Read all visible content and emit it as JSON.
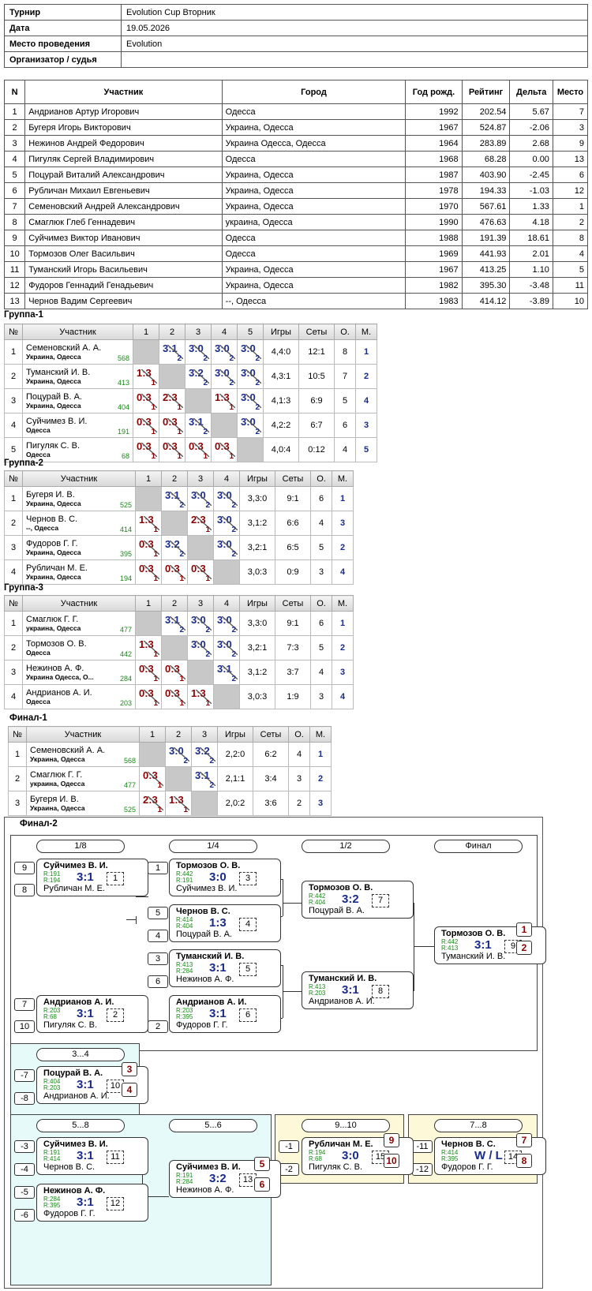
{
  "info": {
    "rows": [
      {
        "k": "Турнир",
        "v": "Evolution Cup Вторник"
      },
      {
        "k": "Дата",
        "v": "19.05.2026"
      },
      {
        "k": "Место проведения",
        "v": "Evolution"
      },
      {
        "k": "Организатор / судья",
        "v": ""
      }
    ]
  },
  "players": {
    "headers": [
      "N",
      "Участник",
      "Город",
      "Год рожд.",
      "Рейтинг",
      "Дельта",
      "Место"
    ],
    "rows": [
      [
        "1",
        "Андрианов Артур Игорович",
        "Одесса",
        "1992",
        "202.54",
        "5.67",
        "7"
      ],
      [
        "2",
        "Бугеря Игорь Викторович",
        "Украина, Одесса",
        "1967",
        "524.87",
        "-2.06",
        "3"
      ],
      [
        "3",
        "Нежинов Андрей Федорович",
        "Украина Одесса, Одесса",
        "1964",
        "283.89",
        "2.68",
        "9"
      ],
      [
        "4",
        "Пигуляк Сергей Владимирович",
        "Одесса",
        "1968",
        "68.28",
        "0.00",
        "13"
      ],
      [
        "5",
        "Поцурай Виталий Александрович",
        "Украина, Одесса",
        "1987",
        "403.90",
        "-2.45",
        "6"
      ],
      [
        "6",
        "Рубличан Михаил Евгеньевич",
        "Украина, Одесса",
        "1978",
        "194.33",
        "-1.03",
        "12"
      ],
      [
        "7",
        "Семеновский Андрей Александрович",
        "Украина, Одесса",
        "1970",
        "567.61",
        "1.33",
        "1"
      ],
      [
        "8",
        "Смаглюк Глеб Геннадевич",
        "украина, Одесса",
        "1990",
        "476.63",
        "4.18",
        "2"
      ],
      [
        "9",
        "Суйчимез Виктор Иванович",
        "Одесса",
        "1988",
        "191.39",
        "18.61",
        "8"
      ],
      [
        "10",
        "Тормозов Олег Васильвич",
        "Одесса",
        "1969",
        "441.93",
        "2.01",
        "4"
      ],
      [
        "11",
        "Туманский Игорь Васильевич",
        "Украина, Одесса",
        "1967",
        "413.25",
        "1.10",
        "5"
      ],
      [
        "12",
        "Фудоров Геннадий Генадьевич",
        "Украина, Одесса",
        "1982",
        "395.30",
        "-3.48",
        "11"
      ],
      [
        "13",
        "Чернов Вадим Сергеевич",
        "--, Одесса",
        "1983",
        "414.12",
        "-3.89",
        "10"
      ]
    ]
  },
  "groups": [
    {
      "title": "Группа-1",
      "cols": [
        "№",
        "Участник",
        "1",
        "2",
        "3",
        "4",
        "5",
        "Игры",
        "Сеты",
        "О.",
        "М."
      ],
      "rows": [
        {
          "n": "1",
          "name": "Семеновский А. А.",
          "city": "Украина, Одесса",
          "rating": "568",
          "cells": [
            null,
            [
              "3:1",
              "2",
              "w"
            ],
            [
              "3:0",
              "2",
              "w"
            ],
            [
              "3:0",
              "2",
              "w"
            ],
            [
              "3:0",
              "2",
              "w"
            ]
          ],
          "games": "4,4:0",
          "sets": "12:1",
          "pts": "8",
          "place": "1"
        },
        {
          "n": "2",
          "name": "Туманский И. В.",
          "city": "Украина, Одесса",
          "rating": "413",
          "cells": [
            [
              "1:3",
              "1",
              "l"
            ],
            null,
            [
              "3:2",
              "2",
              "w"
            ],
            [
              "3:0",
              "2",
              "w"
            ],
            [
              "3:0",
              "2",
              "w"
            ]
          ],
          "games": "4,3:1",
          "sets": "10:5",
          "pts": "7",
          "place": "2"
        },
        {
          "n": "3",
          "name": "Поцурай В. А.",
          "city": "Украина, Одесса",
          "rating": "404",
          "cells": [
            [
              "0:3",
              "1",
              "l"
            ],
            [
              "2:3",
              "1",
              "l"
            ],
            null,
            [
              "1:3",
              "1",
              "l"
            ],
            [
              "3:0",
              "2",
              "w"
            ]
          ],
          "games": "4,1:3",
          "sets": "6:9",
          "pts": "5",
          "place": "4"
        },
        {
          "n": "4",
          "name": "Суйчимез В. И.",
          "city": "Одесса",
          "rating": "191",
          "cells": [
            [
              "0:3",
              "1",
              "l"
            ],
            [
              "0:3",
              "1",
              "l"
            ],
            [
              "3:1",
              "2",
              "w"
            ],
            null,
            [
              "3:0",
              "2",
              "w"
            ]
          ],
          "games": "4,2:2",
          "sets": "6:7",
          "pts": "6",
          "place": "3"
        },
        {
          "n": "5",
          "name": "Пигуляк С. В.",
          "city": "Одесса",
          "rating": "68",
          "cells": [
            [
              "0:3",
              "1",
              "l"
            ],
            [
              "0:3",
              "1",
              "l"
            ],
            [
              "0:3",
              "1",
              "l"
            ],
            [
              "0:3",
              "1",
              "l"
            ],
            null
          ],
          "games": "4,0:4",
          "sets": "0:12",
          "pts": "4",
          "place": "5"
        }
      ]
    },
    {
      "title": "Группа-2",
      "cols": [
        "№",
        "Участник",
        "1",
        "2",
        "3",
        "4",
        "Игры",
        "Сеты",
        "О.",
        "М."
      ],
      "rows": [
        {
          "n": "1",
          "name": "Бугеря И. В.",
          "city": "Украина, Одесса",
          "rating": "525",
          "cells": [
            null,
            [
              "3:1",
              "2",
              "w"
            ],
            [
              "3:0",
              "2",
              "w"
            ],
            [
              "3:0",
              "2",
              "w"
            ]
          ],
          "games": "3,3:0",
          "sets": "9:1",
          "pts": "6",
          "place": "1"
        },
        {
          "n": "2",
          "name": "Чернов В. С.",
          "city": "--, Одесса",
          "rating": "414",
          "cells": [
            [
              "1:3",
              "1",
              "l"
            ],
            null,
            [
              "2:3",
              "1",
              "l"
            ],
            [
              "3:0",
              "2",
              "w"
            ]
          ],
          "games": "3,1:2",
          "sets": "6:6",
          "pts": "4",
          "place": "3"
        },
        {
          "n": "3",
          "name": "Фудоров Г. Г.",
          "city": "Украина, Одесса",
          "rating": "395",
          "cells": [
            [
              "0:3",
              "1",
              "l"
            ],
            [
              "3:2",
              "2",
              "w"
            ],
            null,
            [
              "3:0",
              "2",
              "w"
            ]
          ],
          "games": "3,2:1",
          "sets": "6:5",
          "pts": "5",
          "place": "2"
        },
        {
          "n": "4",
          "name": "Рубличан М. Е.",
          "city": "Украина, Одесса",
          "rating": "194",
          "cells": [
            [
              "0:3",
              "1",
              "l"
            ],
            [
              "0:3",
              "1",
              "l"
            ],
            [
              "0:3",
              "1",
              "l"
            ],
            null
          ],
          "games": "3,0:3",
          "sets": "0:9",
          "pts": "3",
          "place": "4"
        }
      ]
    },
    {
      "title": "Группа-3",
      "cols": [
        "№",
        "Участник",
        "1",
        "2",
        "3",
        "4",
        "Игры",
        "Сеты",
        "О.",
        "М."
      ],
      "rows": [
        {
          "n": "1",
          "name": "Смаглюк Г. Г.",
          "city": "украина, Одесса",
          "rating": "477",
          "cells": [
            null,
            [
              "3:1",
              "2",
              "w"
            ],
            [
              "3:0",
              "2",
              "w"
            ],
            [
              "3:0",
              "2",
              "w"
            ]
          ],
          "games": "3,3:0",
          "sets": "9:1",
          "pts": "6",
          "place": "1"
        },
        {
          "n": "2",
          "name": "Тормозов О. В.",
          "city": "Одесса",
          "rating": "442",
          "cells": [
            [
              "1:3",
              "1",
              "l"
            ],
            null,
            [
              "3:0",
              "2",
              "w"
            ],
            [
              "3:0",
              "2",
              "w"
            ]
          ],
          "games": "3,2:1",
          "sets": "7:3",
          "pts": "5",
          "place": "2"
        },
        {
          "n": "3",
          "name": "Нежинов А. Ф.",
          "city": "Украина Одесса, О...",
          "rating": "284",
          "cells": [
            [
              "0:3",
              "1",
              "l"
            ],
            [
              "0:3",
              "1",
              "l"
            ],
            null,
            [
              "3:1",
              "2",
              "w"
            ]
          ],
          "games": "3,1:2",
          "sets": "3:7",
          "pts": "4",
          "place": "3"
        },
        {
          "n": "4",
          "name": "Андрианов А. И.",
          "city": "Одесса",
          "rating": "203",
          "cells": [
            [
              "0:3",
              "1",
              "l"
            ],
            [
              "0:3",
              "1",
              "l"
            ],
            [
              "1:3",
              "1",
              "l"
            ],
            null
          ],
          "games": "3,0:3",
          "sets": "1:9",
          "pts": "3",
          "place": "4"
        }
      ]
    },
    {
      "title": "Финал-1",
      "cols": [
        "№",
        "Участник",
        "1",
        "2",
        "3",
        "Игры",
        "Сеты",
        "О.",
        "М."
      ],
      "rows": [
        {
          "n": "1",
          "name": "Семеновский А. А.",
          "city": "Украина, Одесса",
          "rating": "568",
          "cells": [
            null,
            [
              "3:0",
              "2",
              "w"
            ],
            [
              "3:2",
              "2",
              "w"
            ]
          ],
          "games": "2,2:0",
          "sets": "6:2",
          "pts": "4",
          "place": "1"
        },
        {
          "n": "2",
          "name": "Смаглюк Г. Г.",
          "city": "украина, Одесса",
          "rating": "477",
          "cells": [
            [
              "0:3",
              "1",
              "l"
            ],
            null,
            [
              "3:1",
              "2",
              "w"
            ]
          ],
          "games": "2,1:1",
          "sets": "3:4",
          "pts": "3",
          "place": "2"
        },
        {
          "n": "3",
          "name": "Бугеря И. В.",
          "city": "Украина, Одесса",
          "rating": "525",
          "cells": [
            [
              "2:3",
              "1",
              "l"
            ],
            [
              "1:3",
              "1",
              "l"
            ],
            null
          ],
          "games": "2,0:2",
          "sets": "3:6",
          "pts": "2",
          "place": "3"
        }
      ]
    }
  ],
  "final2": {
    "title": "Финал-2",
    "rounds": [
      "1/8",
      "1/4",
      "1/2",
      "Финал",
      "3...4",
      "5...8",
      "5...6",
      "9...10",
      "7...8"
    ],
    "seeds": [
      "9",
      "8",
      "1",
      "5",
      "4",
      "3",
      "6",
      "7",
      "10",
      "2",
      "-7",
      "-8",
      "-3",
      "-4",
      "-5",
      "-6",
      "-1",
      "-2",
      "-11",
      "-12"
    ],
    "notes": [
      "-15",
      "-11",
      "-11",
      "-10",
      "-12",
      "-15",
      "-12",
      "-10",
      "-14",
      "-14"
    ],
    "places": [
      "1",
      "2",
      "3",
      "4",
      "5",
      "6",
      "9",
      "10",
      "7",
      "8"
    ],
    "matches": [
      {
        "p1": "Суйчимез В. И.",
        "r1": "R:191",
        "r2": "R:194",
        "score": "3:1",
        "num": "1",
        "p2": "Рубличан М. Е."
      },
      {
        "p1": "Тормозов О. В.",
        "r1": "R:442",
        "r2": "R:191",
        "score": "3:0",
        "num": "3",
        "p2": "Суйчимез В. И."
      },
      {
        "p1": "Чернов В. С.",
        "r1": "R:414",
        "r2": "R:404",
        "score": "1:3",
        "num": "4",
        "p2": "Поцурай В. А."
      },
      {
        "p1": "Туманский И. В.",
        "r1": "R:413",
        "r2": "R:284",
        "score": "3:1",
        "num": "5",
        "p2": "Нежинов А. Ф."
      },
      {
        "p1": "Андрианов А. И.",
        "r1": "R:203",
        "r2": "R:68",
        "score": "3:1",
        "num": "2",
        "p2": "Пигуляк С. В."
      },
      {
        "p1": "Андрианов А. И.",
        "r1": "R:203",
        "r2": "R:395",
        "score": "3:1",
        "num": "6",
        "p2": "Фудоров Г. Г."
      },
      {
        "p1": "Тормозов О. В.",
        "r1": "R:442",
        "r2": "R:404",
        "score": "3:2",
        "num": "7",
        "p2": "Поцурай В. А."
      },
      {
        "p1": "Туманский И. В.",
        "r1": "R:413",
        "r2": "R:203",
        "score": "3:1",
        "num": "8",
        "p2": "Андрианов А. И."
      },
      {
        "p1": "Тормозов О. В.",
        "r1": "R:442",
        "r2": "R:413",
        "score": "3:1",
        "num": "9",
        "p2": "Туманский И. В."
      },
      {
        "p1": "Поцурай В. А.",
        "r1": "R:404",
        "r2": "R:203",
        "score": "3:1",
        "num": "10",
        "p2": "Андрианов А. И."
      },
      {
        "p1": "Суйчимез В. И.",
        "r1": "R:191",
        "r2": "R:414",
        "score": "3:1",
        "num": "11",
        "p2": "Чернов В. С."
      },
      {
        "p1": "Нежинов А. Ф.",
        "r1": "R:284",
        "r2": "R:395",
        "score": "3:1",
        "num": "12",
        "p2": "Фудоров Г. Г."
      },
      {
        "p1": "Суйчимез В. И.",
        "r1": "R:191",
        "r2": "R:284",
        "score": "3:2",
        "num": "13",
        "p2": "Нежинов А. Ф."
      },
      {
        "p1": "Рубличан М. Е.",
        "r1": "R:194",
        "r2": "R:68",
        "score": "3:0",
        "num": "15",
        "p2": "Пигуляк С. В."
      },
      {
        "p1": "Чернов В. С.",
        "r1": "R:414",
        "r2": "R:395",
        "score": "W / L",
        "num": "14",
        "p2": "Фудоров Г. Г."
      }
    ]
  }
}
